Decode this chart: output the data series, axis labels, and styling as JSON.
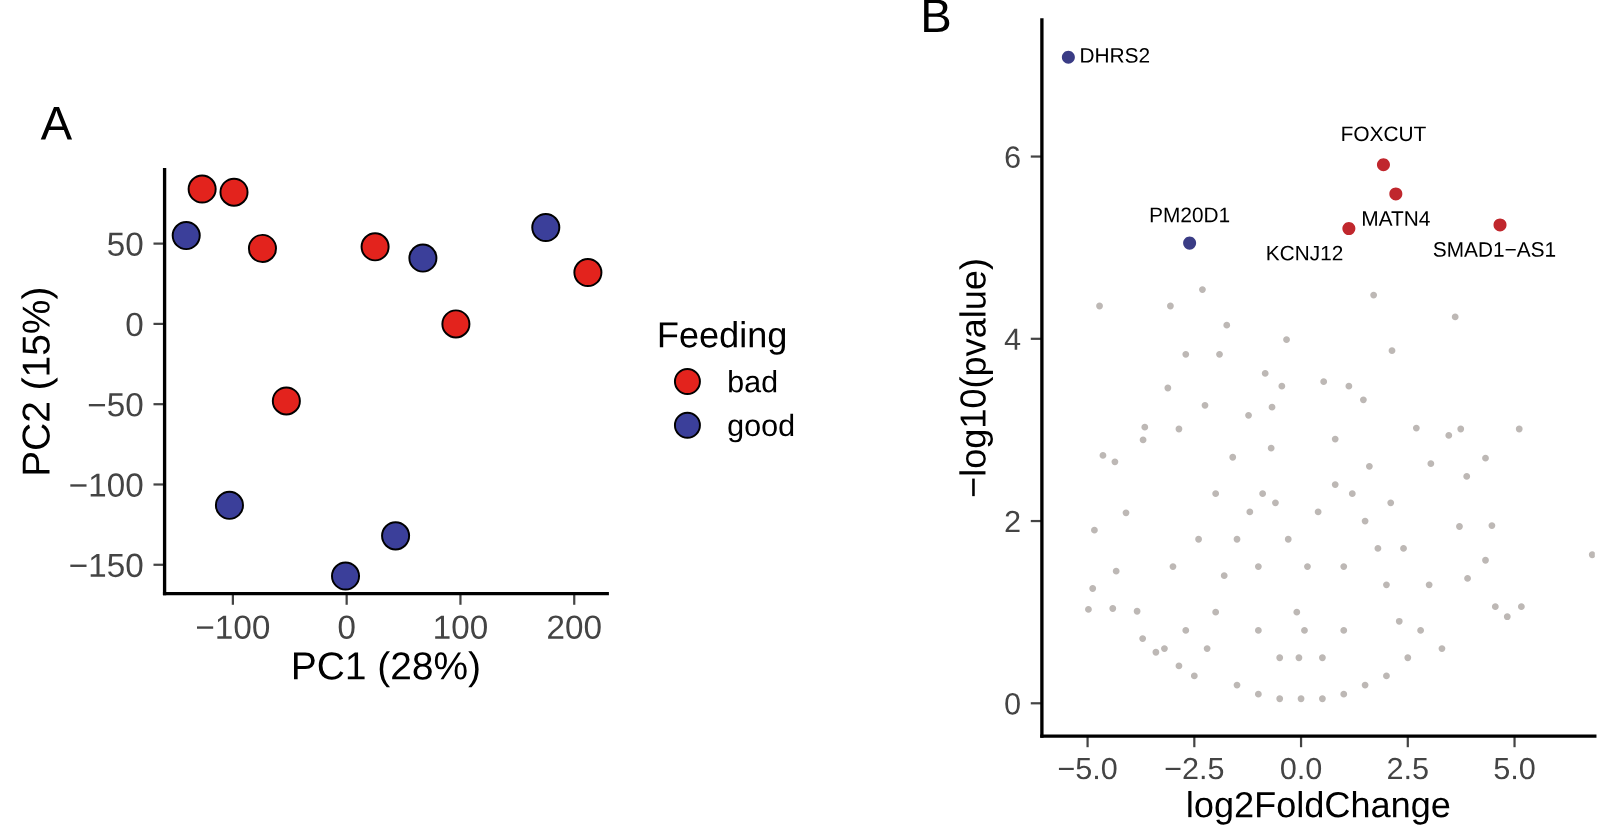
{
  "chart_data": [
    {
      "type": "scatter",
      "title": "A",
      "xlabel": "PC1 (28%)",
      "ylabel": "PC2 (15%)",
      "legend_title": "Feeding",
      "legend": "right",
      "marker": "circle",
      "grid": false,
      "xlim": [
        -160,
        229
      ],
      "ylim": [
        -168,
        96
      ],
      "xticks": [
        {
          "value": -100,
          "label": "−100"
        },
        0,
        100,
        200
      ],
      "yticks": [
        {
          "value": -150,
          "label": "−150"
        },
        {
          "value": -100,
          "label": "−100"
        },
        {
          "value": -50,
          "label": "−50"
        },
        0,
        50
      ],
      "series": [
        {
          "name": "bad",
          "color": "#e3231d",
          "x": [
            -127,
            -99,
            -74,
            25,
            212,
            96,
            -53
          ],
          "values": [
            84,
            82,
            47,
            48,
            32,
            0,
            -48
          ]
        },
        {
          "name": "good",
          "color": "#3b3f9a",
          "x": [
            -141,
            67,
            175,
            -103,
            43,
            -1
          ],
          "values": [
            55,
            41,
            60,
            -113,
            -132,
            -157
          ]
        }
      ]
    },
    {
      "type": "scatter",
      "title": "B",
      "xlabel": "log2FoldChange",
      "ylabel": "−log10(pvalue)",
      "legend": false,
      "marker": "circle",
      "grid": false,
      "xlim": [
        -6.07,
        6.88
      ],
      "ylim": [
        -0.36,
        7.5
      ],
      "xticks": [
        {
          "value": -5,
          "label": "−5.0"
        },
        {
          "value": -2.5,
          "label": "−2.5"
        },
        {
          "value": 0,
          "label": "0.0"
        },
        {
          "value": 2.5,
          "label": "2.5"
        },
        {
          "value": 5,
          "label": "5.0"
        }
      ],
      "yticks": [
        0,
        2,
        4,
        6
      ],
      "series": [
        {
          "color": "#bdb8b5",
          "x": [
            -4.72,
            -3.06,
            -2.31,
            -1.74,
            -0.34,
            1.7,
            3.61,
            2.13,
            -2.7,
            -1.91,
            -0.84,
            -0.45,
            -3.12,
            -2.25,
            0.53,
            1.12,
            1.46,
            -0.68,
            -1.23,
            -3.66,
            -2.86,
            -4.64,
            -4.36,
            -3.7,
            5.11,
            3.74,
            3.46,
            4.32,
            3.88,
            3.04,
            2.7,
            -4.1,
            -4.84,
            6.82,
            4.47,
            4.32,
            -4.88,
            -4.98,
            -4.41,
            4.55,
            4.83,
            5.16,
            -3.84,
            -3.71,
            -4.33,
            3.71,
            3.9,
            -3.4,
            -2.86,
            -2.5,
            -2.2,
            -2.0,
            -1.8,
            -1.5,
            -1.2,
            -0.9,
            -0.6,
            -0.3,
            -0.1,
            -0.05,
            0.0,
            -1.0,
            -1.5,
            -0.5,
            0.5,
            1.0,
            1.5,
            2.0,
            2.5,
            2.3,
            2.0,
            1.8,
            1.5,
            1.2,
            0.8,
            0.4,
            0.15,
            0.08,
            -1.0,
            -1.0,
            1.0,
            1.0,
            -0.5,
            0.5,
            -2.7,
            2.8,
            -3.2,
            3.3,
            -2.4,
            2.4,
            -2.0,
            2.1,
            -1.6,
            1.6,
            -0.7,
            0.8,
            -3.0,
            3.0
          ],
          "values": [
            4.36,
            4.36,
            4.54,
            4.15,
            3.99,
            4.48,
            4.24,
            3.87,
            3.83,
            3.83,
            3.62,
            3.48,
            3.46,
            3.27,
            3.53,
            3.48,
            3.33,
            3.25,
            3.16,
            3.03,
            3.01,
            2.72,
            2.65,
            2.89,
            3.01,
            3.01,
            2.94,
            2.69,
            2.49,
            2.63,
            3.02,
            2.09,
            1.9,
            1.63,
            1.95,
            1.57,
            1.26,
            1.03,
            1.04,
            1.06,
            0.95,
            1.06,
            1.01,
            0.71,
            1.45,
            1.94,
            1.37,
            0.56,
            0.41,
            0.3,
            0.6,
            1.0,
            1.4,
            1.8,
            2.1,
            2.3,
            2.2,
            1.8,
            1.0,
            0.5,
            0.05,
            0.1,
            0.2,
            0.05,
            0.05,
            0.1,
            0.2,
            0.3,
            0.5,
            0.9,
            1.3,
            1.7,
            2.0,
            2.3,
            2.4,
            2.1,
            1.5,
            0.8,
            0.8,
            1.5,
            0.8,
            1.5,
            0.5,
            0.5,
            0.8,
            0.8,
            0.6,
            0.6,
            1.8,
            1.7,
            2.3,
            2.2,
            2.7,
            2.6,
            2.8,
            2.9,
            1.5,
            1.3
          ]
        },
        {
          "color": "#c0272d",
          "x": [
            1.93,
            2.22,
            1.12,
            4.66
          ],
          "values": [
            5.91,
            5.59,
            5.21,
            5.25
          ]
        },
        {
          "color": "#3a3c85",
          "x": [
            -5.45,
            -2.61
          ],
          "values": [
            7.09,
            5.05
          ]
        }
      ],
      "annotations": [
        {
          "text": "DHRS2",
          "x": -5.45,
          "y": 7.09
        },
        {
          "text": "FOXCUT",
          "x": 1.93,
          "y": 5.91
        },
        {
          "text": "MATN4",
          "x": 2.22,
          "y": 5.59
        },
        {
          "text": "KCNJ12",
          "x": 1.12,
          "y": 5.21
        },
        {
          "text": "SMAD1−AS1",
          "x": 4.66,
          "y": 5.25
        },
        {
          "text": "PM20D1",
          "x": -2.61,
          "y": 5.05
        }
      ]
    }
  ]
}
